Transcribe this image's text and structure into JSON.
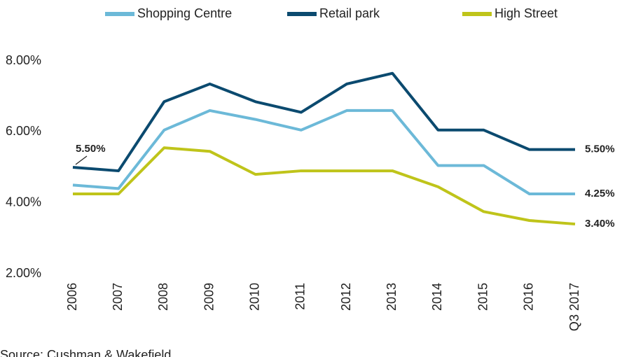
{
  "chart_data": {
    "type": "line",
    "categories": [
      "2006",
      "2007",
      "2008",
      "2009",
      "2010",
      "2011",
      "2012",
      "2013",
      "2014",
      "2015",
      "2016",
      "Q3 2017"
    ],
    "series": [
      {
        "name": "Shopping Centre",
        "color": "#6cb9d8",
        "values": [
          4.5,
          4.4,
          6.05,
          6.6,
          6.35,
          6.05,
          6.6,
          6.6,
          5.05,
          5.05,
          4.25,
          4.25
        ],
        "value_labels": [
          null,
          null,
          null,
          null,
          null,
          null,
          null,
          null,
          null,
          null,
          null,
          "4.25%"
        ]
      },
      {
        "name": "Retail park",
        "color": "#0b4a6f",
        "values": [
          5.0,
          4.9,
          6.85,
          7.35,
          6.85,
          6.55,
          7.35,
          7.65,
          6.05,
          6.05,
          5.5,
          5.5
        ],
        "value_labels": [
          null,
          null,
          null,
          null,
          null,
          null,
          null,
          null,
          null,
          null,
          null,
          "5.50%"
        ]
      },
      {
        "name": "High Street",
        "color": "#bfc41a",
        "values": [
          4.25,
          4.25,
          5.55,
          5.45,
          4.8,
          4.9,
          4.9,
          4.9,
          4.45,
          3.75,
          3.5,
          3.4
        ],
        "value_labels": [
          null,
          null,
          null,
          null,
          null,
          null,
          null,
          null,
          null,
          null,
          null,
          "3.40%"
        ]
      }
    ],
    "annotations": [
      {
        "text": "5.50%"
      }
    ],
    "ylim": [
      2,
      8
    ],
    "yticks": [
      {
        "value": 2,
        "label": "2.00%"
      },
      {
        "value": 4,
        "label": "4.00%"
      },
      {
        "value": 6,
        "label": "6.00%"
      },
      {
        "value": 8,
        "label": "8.00%"
      }
    ],
    "grid": false,
    "legend": "top",
    "source": "Source: Cushman & Wakefield"
  }
}
